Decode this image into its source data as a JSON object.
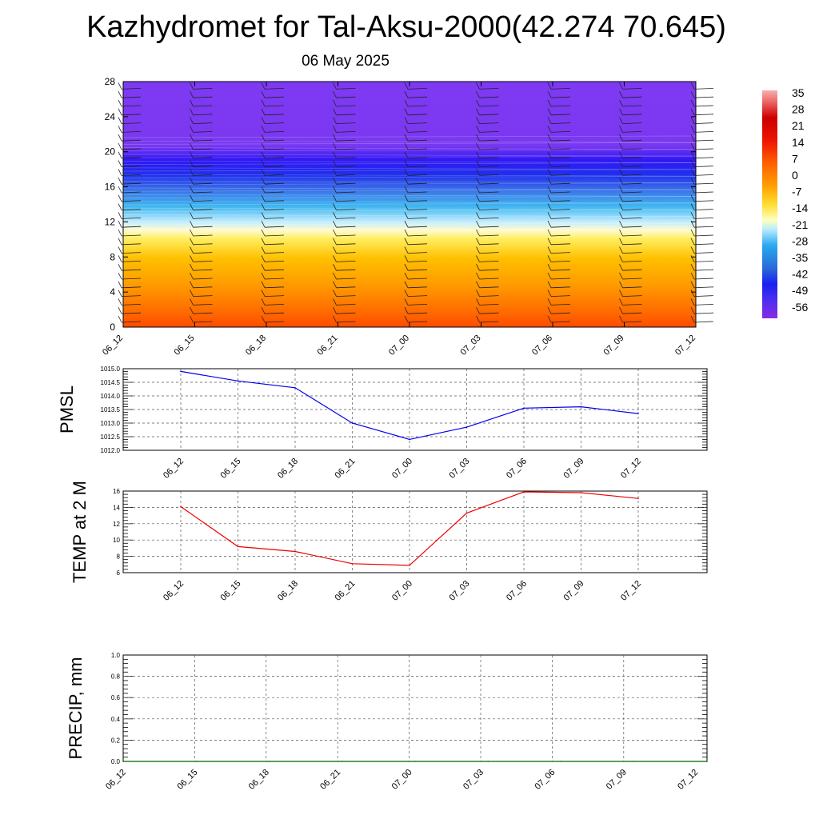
{
  "title": "Kazhydromet for Tal-Aksu-2000(42.274 70.645)",
  "subtitle": "06 May 2025",
  "colors": {
    "pmsl_line": "#0000ee",
    "temp_line": "#ee0000",
    "precip_line": "#006400"
  },
  "colorbar": {
    "labels": [
      "35",
      "28",
      "21",
      "14",
      "7",
      "0",
      "-7",
      "-14",
      "-21",
      "-28",
      "-35",
      "-42",
      "-49",
      "-56"
    ]
  },
  "chart_data": [
    {
      "type": "heatmap",
      "title": "",
      "xlabel": "",
      "ylabel": "",
      "x_ticks": [
        "06_12",
        "06_15",
        "06_18",
        "06_21",
        "07_00",
        "07_03",
        "07_06",
        "07_09",
        "07_12"
      ],
      "y_ticks": [
        "0",
        "4",
        "8",
        "12",
        "16",
        "20",
        "24",
        "28"
      ],
      "ylim": [
        0,
        28
      ],
      "variable_note": "temperature contours with wind barbs",
      "color_levels": [
        "35",
        "28",
        "21",
        "14",
        "7",
        "0",
        "-7",
        "-14",
        "-21",
        "-28",
        "-35",
        "-42",
        "-49",
        "-56"
      ]
    },
    {
      "type": "line",
      "ylabel": "PMSL",
      "categories": [
        "06_12",
        "06_15",
        "06_18",
        "06_21",
        "07_00",
        "07_03",
        "07_06",
        "07_09",
        "07_12"
      ],
      "values": [
        1014.9,
        1014.55,
        1014.3,
        1013.0,
        1012.4,
        1012.85,
        1013.55,
        1013.6,
        1013.35
      ],
      "ylim": [
        1012.0,
        1015.0
      ],
      "y_ticks": [
        "1012.0",
        "1012.5",
        "1013.0",
        "1013.5",
        "1014.0",
        "1014.5",
        "1015.0"
      ]
    },
    {
      "type": "line",
      "ylabel": "TEMP at 2 M",
      "categories": [
        "06_12",
        "06_15",
        "06_18",
        "06_21",
        "07_00",
        "07_03",
        "07_06",
        "07_09",
        "07_12"
      ],
      "values": [
        14.1,
        9.2,
        8.6,
        7.1,
        6.9,
        13.3,
        15.9,
        15.8,
        15.1
      ],
      "ylim": [
        6,
        16
      ],
      "y_ticks": [
        "6",
        "8",
        "10",
        "12",
        "14",
        "16"
      ]
    },
    {
      "type": "line",
      "ylabel": "PRECIP, mm",
      "categories": [
        "06_12",
        "06_15",
        "06_18",
        "06_21",
        "07_00",
        "07_03",
        "07_06",
        "07_09",
        "07_12"
      ],
      "values": [
        0,
        0,
        0,
        0,
        0,
        0,
        0,
        0,
        0
      ],
      "ylim": [
        0.0,
        1.0
      ],
      "y_ticks": [
        "0.0",
        "0.2",
        "0.4",
        "0.6",
        "0.8",
        "1.0"
      ]
    }
  ]
}
